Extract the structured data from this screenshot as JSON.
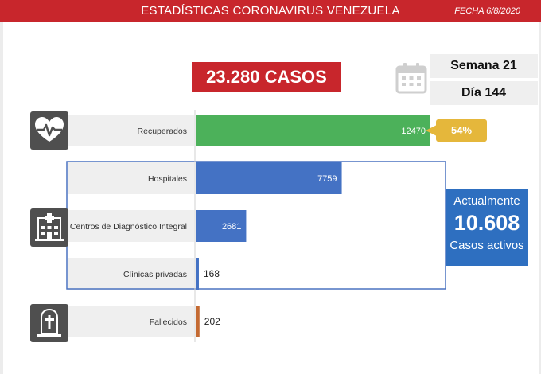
{
  "header": {
    "title": "ESTADÍSTICAS CORONAVIRUS VENEZUELA",
    "date": "FECHA 6/8/2020"
  },
  "total": {
    "label": "23.280 CASOS"
  },
  "period": {
    "week": "Semana 21",
    "day": "Día 144"
  },
  "recovered_share": "54%",
  "active": {
    "top": "Actualmente",
    "value": "10.608",
    "bottom": "Casos activos"
  },
  "colors": {
    "header": "#c8262c",
    "recovered": "#4cb15a",
    "active": "#4472c4",
    "deaths": "#c46a32",
    "badge": "#e5b73b",
    "icon": "#4f4f4f"
  },
  "icons": [
    "heart-pulse-icon",
    "calendar-icon",
    "hospital-icon",
    "tombstone-icon",
    "arrow-left-icon"
  ],
  "chart_data": {
    "type": "bar",
    "orientation": "horizontal",
    "categories": [
      "Recuperados",
      "Hospitales",
      "Centros de Diagnóstico Integral",
      "Clínicas privadas",
      "Fallecidos"
    ],
    "values": [
      12470,
      7759,
      2681,
      168,
      202
    ],
    "value_labels": [
      "12470",
      "7759",
      "2681",
      "168",
      "202"
    ],
    "bar_colors": [
      "#4cb15a",
      "#4472c4",
      "#4472c4",
      "#4472c4",
      "#c46a32"
    ],
    "label_inside": [
      true,
      true,
      true,
      false,
      false
    ],
    "xlim": [
      0,
      12470
    ]
  }
}
